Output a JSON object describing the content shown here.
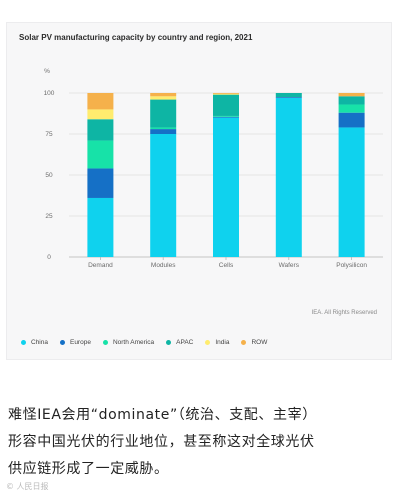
{
  "chart_data": {
    "type": "bar",
    "stacked": true,
    "title": "Solar PV manufacturing capacity by country and region, 2021",
    "ylabel": "%",
    "ylim": [
      0,
      100
    ],
    "yticks": [
      0,
      25,
      50,
      75,
      100
    ],
    "categories": [
      "Demand",
      "Modules",
      "Cells",
      "Wafers",
      "Polysilicon"
    ],
    "series": [
      {
        "name": "China",
        "color": "#0fd2ee",
        "values": [
          36,
          75,
          85,
          97,
          79
        ]
      },
      {
        "name": "Europe",
        "color": "#1570c6",
        "values": [
          18,
          3,
          0.5,
          0.5,
          9
        ]
      },
      {
        "name": "North America",
        "color": "#17e2a8",
        "values": [
          17,
          1,
          0.5,
          0,
          5
        ]
      },
      {
        "name": "APAC",
        "color": "#0eb5a4",
        "values": [
          13,
          17,
          13,
          2.5,
          5
        ]
      },
      {
        "name": "India",
        "color": "#ffec6e",
        "values": [
          6,
          2,
          0.5,
          0,
          0
        ]
      },
      {
        "name": "ROW",
        "color": "#f5b14b",
        "values": [
          10,
          2,
          0.5,
          0,
          2
        ]
      }
    ],
    "grid": true,
    "legend_position": "bottom",
    "credit": "IEA. All Rights Reserved"
  },
  "article": {
    "line1": "难怪IEA会用“dominate”（统治、支配、主宰）",
    "line2": "形容中国光伏的行业地位，甚至称这对全球光伏",
    "line3": "供应链形成了一定威胁。"
  },
  "watermark": "© 人民日报"
}
